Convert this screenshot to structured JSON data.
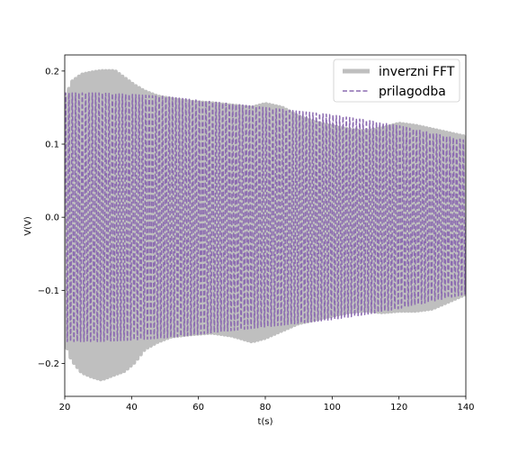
{
  "chart_data": {
    "type": "line",
    "title": "",
    "xlabel": "t(s)",
    "ylabel": "V(V)",
    "xlim": [
      20,
      140
    ],
    "ylim": [
      -0.245,
      0.222
    ],
    "xticks": [
      20,
      40,
      60,
      80,
      100,
      120,
      140
    ],
    "xtick_labels": [
      "20",
      "40",
      "60",
      "80",
      "100",
      "120",
      "140"
    ],
    "yticks": [
      -0.2,
      -0.1,
      0.0,
      0.1,
      0.2
    ],
    "ytick_labels": [
      "−0.2",
      "−0.1",
      "0.0",
      "0.1",
      "0.2"
    ],
    "grid": false,
    "legend_position": "top-right",
    "oscillation_period_s": 1.0,
    "series": [
      {
        "name": "inverzni FFT",
        "color": "#bfbfbf",
        "style": "solid",
        "envelope": {
          "t": [
            20,
            22,
            25,
            28,
            31,
            35,
            38,
            41,
            44,
            48,
            52,
            58,
            64,
            70,
            76,
            80,
            85,
            90,
            95,
            100,
            105,
            110,
            115,
            120,
            125,
            130,
            135,
            140
          ],
          "upper": [
            0.16,
            0.185,
            0.195,
            0.198,
            0.2,
            0.2,
            0.19,
            0.18,
            0.172,
            0.165,
            0.162,
            0.158,
            0.156,
            0.153,
            0.15,
            0.155,
            0.15,
            0.138,
            0.13,
            0.125,
            0.12,
            0.118,
            0.122,
            0.128,
            0.125,
            0.12,
            0.115,
            0.11
          ],
          "lower": [
            -0.17,
            -0.195,
            -0.212,
            -0.218,
            -0.222,
            -0.215,
            -0.21,
            -0.198,
            -0.18,
            -0.17,
            -0.163,
            -0.16,
            -0.158,
            -0.162,
            -0.17,
            -0.165,
            -0.155,
            -0.145,
            -0.14,
            -0.135,
            -0.13,
            -0.128,
            -0.13,
            -0.128,
            -0.128,
            -0.125,
            -0.115,
            -0.105
          ]
        }
      },
      {
        "name": "prilagodba",
        "color": "#8c6bb1",
        "style": "dashed",
        "envelope": {
          "t": [
            20,
            30,
            40,
            50,
            60,
            70,
            80,
            90,
            100,
            110,
            120,
            130,
            140
          ],
          "upper": [
            0.17,
            0.17,
            0.168,
            0.165,
            0.16,
            0.155,
            0.15,
            0.145,
            0.14,
            0.133,
            0.125,
            0.115,
            0.105
          ],
          "lower": [
            -0.17,
            -0.17,
            -0.168,
            -0.165,
            -0.16,
            -0.155,
            -0.15,
            -0.145,
            -0.14,
            -0.133,
            -0.125,
            -0.115,
            -0.105
          ]
        }
      }
    ]
  }
}
